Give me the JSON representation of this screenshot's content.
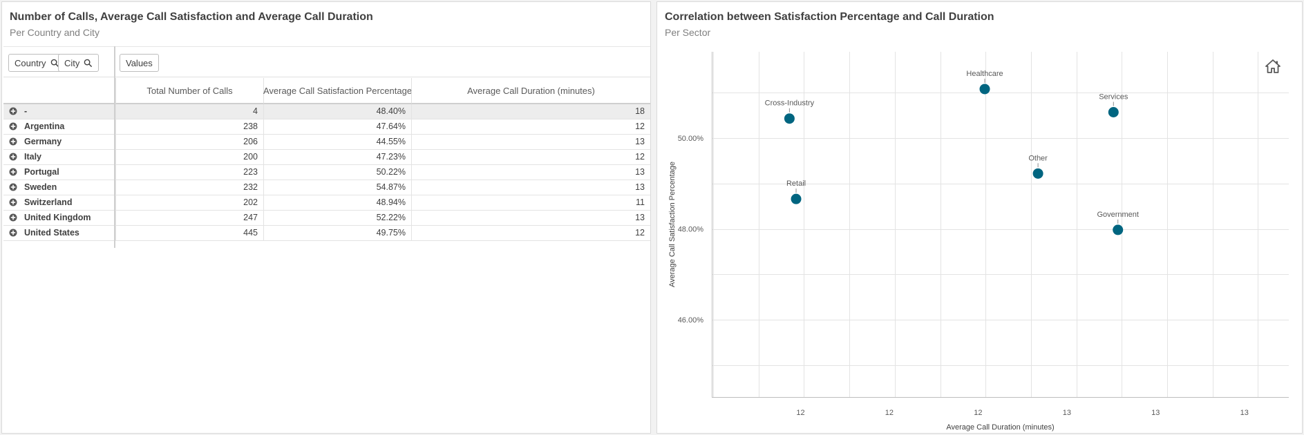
{
  "left_panel": {
    "title": "Number of Calls, Average Call Satisfaction and Average Call Duration",
    "subtitle": "Per Country and City",
    "dimensions": [
      {
        "label": "Country",
        "icon": "search-icon"
      },
      {
        "label": "City",
        "icon": "search-icon"
      }
    ],
    "values_chip": "Values",
    "columns": [
      "Total Number of Calls",
      "Average Call Satisfaction Percentage",
      "Average Call Duration (minutes)"
    ],
    "rows": [
      {
        "name": "-",
        "calls": "4",
        "satisfaction": "48.40%",
        "duration": "18"
      },
      {
        "name": "Argentina",
        "calls": "238",
        "satisfaction": "47.64%",
        "duration": "12"
      },
      {
        "name": "Germany",
        "calls": "206",
        "satisfaction": "44.55%",
        "duration": "13"
      },
      {
        "name": "Italy",
        "calls": "200",
        "satisfaction": "47.23%",
        "duration": "12"
      },
      {
        "name": "Portugal",
        "calls": "223",
        "satisfaction": "50.22%",
        "duration": "13"
      },
      {
        "name": "Sweden",
        "calls": "232",
        "satisfaction": "54.87%",
        "duration": "13"
      },
      {
        "name": "Switzerland",
        "calls": "202",
        "satisfaction": "48.94%",
        "duration": "11"
      },
      {
        "name": "United Kingdom",
        "calls": "247",
        "satisfaction": "52.22%",
        "duration": "13"
      },
      {
        "name": "United States",
        "calls": "445",
        "satisfaction": "49.75%",
        "duration": "12"
      }
    ]
  },
  "right_panel": {
    "title": "Correlation between Satisfaction Percentage and Call Duration",
    "subtitle": "Per Sector",
    "home_icon": "home-icon"
  },
  "chart_data": {
    "type": "scatter",
    "xlabel": "Average Call Duration (minutes)",
    "ylabel": "Average Call Satisfaction Percentage",
    "x_tick_labels": [
      "12",
      "12",
      "12",
      "13",
      "13",
      "13"
    ],
    "y_tick_labels": [
      "46.00%",
      "48.00%",
      "50.00%"
    ],
    "x_ticks": [
      11.9,
      12.3,
      12.7,
      13.1,
      13.5,
      13.9
    ],
    "y_ticks": [
      46,
      48,
      50
    ],
    "xlim": [
      11.5,
      14.1
    ],
    "ylim": [
      44.3,
      51.9
    ],
    "grid": true,
    "point_color": "#006580",
    "points": [
      {
        "label": "Cross-Industry",
        "x": 11.85,
        "y": 50.43
      },
      {
        "label": "Healthcare",
        "x": 12.73,
        "y": 51.08
      },
      {
        "label": "Services",
        "x": 13.31,
        "y": 50.57
      },
      {
        "label": "Other",
        "x": 12.97,
        "y": 49.22
      },
      {
        "label": "Retail",
        "x": 11.88,
        "y": 48.66
      },
      {
        "label": "Government",
        "x": 13.33,
        "y": 47.98
      }
    ]
  }
}
